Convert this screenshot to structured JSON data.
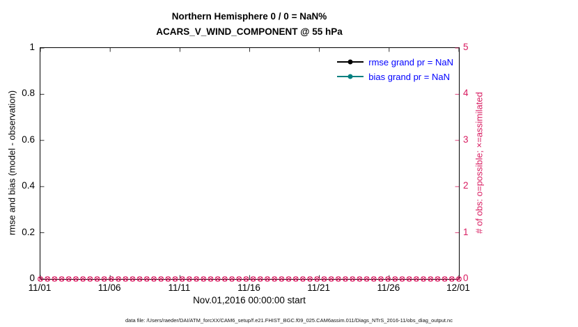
{
  "title": {
    "line1": "Northern Hemisphere 0 / 0 = NaN%",
    "line2": "ACARS_V_WIND_COMPONENT @ 55 hPa"
  },
  "axes": {
    "left": {
      "label": "rmse and bias (model - observation)",
      "ticks": [
        "0",
        "0.2",
        "0.4",
        "0.6",
        "0.8",
        "1"
      ],
      "color": "#000000"
    },
    "right": {
      "label": "# of obs: o=possible; ×=assimilated",
      "ticks": [
        "0",
        "1",
        "2",
        "3",
        "4",
        "5"
      ],
      "color": "#d81b60"
    },
    "x": {
      "label": "Nov.01,2016 00:00:00 start",
      "ticks": [
        "11/01",
        "11/06",
        "11/11",
        "11/16",
        "11/21",
        "11/26",
        "12/01"
      ]
    }
  },
  "legend": {
    "entries": [
      {
        "label": "rmse grand pr = NaN",
        "line_color": "#000000",
        "text_color": "#0000ff"
      },
      {
        "label": "bias grand pr = NaN",
        "line_color": "#008080",
        "text_color": "#0000ff"
      }
    ]
  },
  "footer": {
    "caption": "data file: /Users/raeder/DAI/ATM_forcXX/CAM6_setup/f.e21.FHIST_BGC.f09_025.CAM6assim.011/Diags_NTrS_2016-11/obs_diag_output.nc"
  },
  "chart_data": {
    "type": "line",
    "title": "Northern Hemisphere 0 / 0 = NaN% / ACARS_V_WIND_COMPONENT @ 55 hPa",
    "xlabel": "Nov.01,2016 00:00:00 start",
    "x_ticks": [
      "11/01",
      "11/06",
      "11/11",
      "11/16",
      "11/21",
      "11/26",
      "12/01"
    ],
    "left_axis": {
      "label": "rmse and bias (model - observation)",
      "range": [
        0,
        1
      ],
      "grid": false
    },
    "right_axis": {
      "label": "# of obs: o=possible; ×=assimilated",
      "range": [
        0,
        5
      ],
      "grid": false
    },
    "legend_position": "top-right",
    "series": [
      {
        "name": "rmse grand pr = NaN",
        "axis": "left",
        "color": "#000000",
        "values": []
      },
      {
        "name": "bias grand pr = NaN",
        "axis": "left",
        "color": "#008080",
        "values": []
      }
    ],
    "obs_counts": {
      "axis": "right",
      "color": "#d81b60",
      "possible_marker": "o",
      "assimilated_marker": "×",
      "n_points": 60,
      "constant_value": 0
    }
  }
}
